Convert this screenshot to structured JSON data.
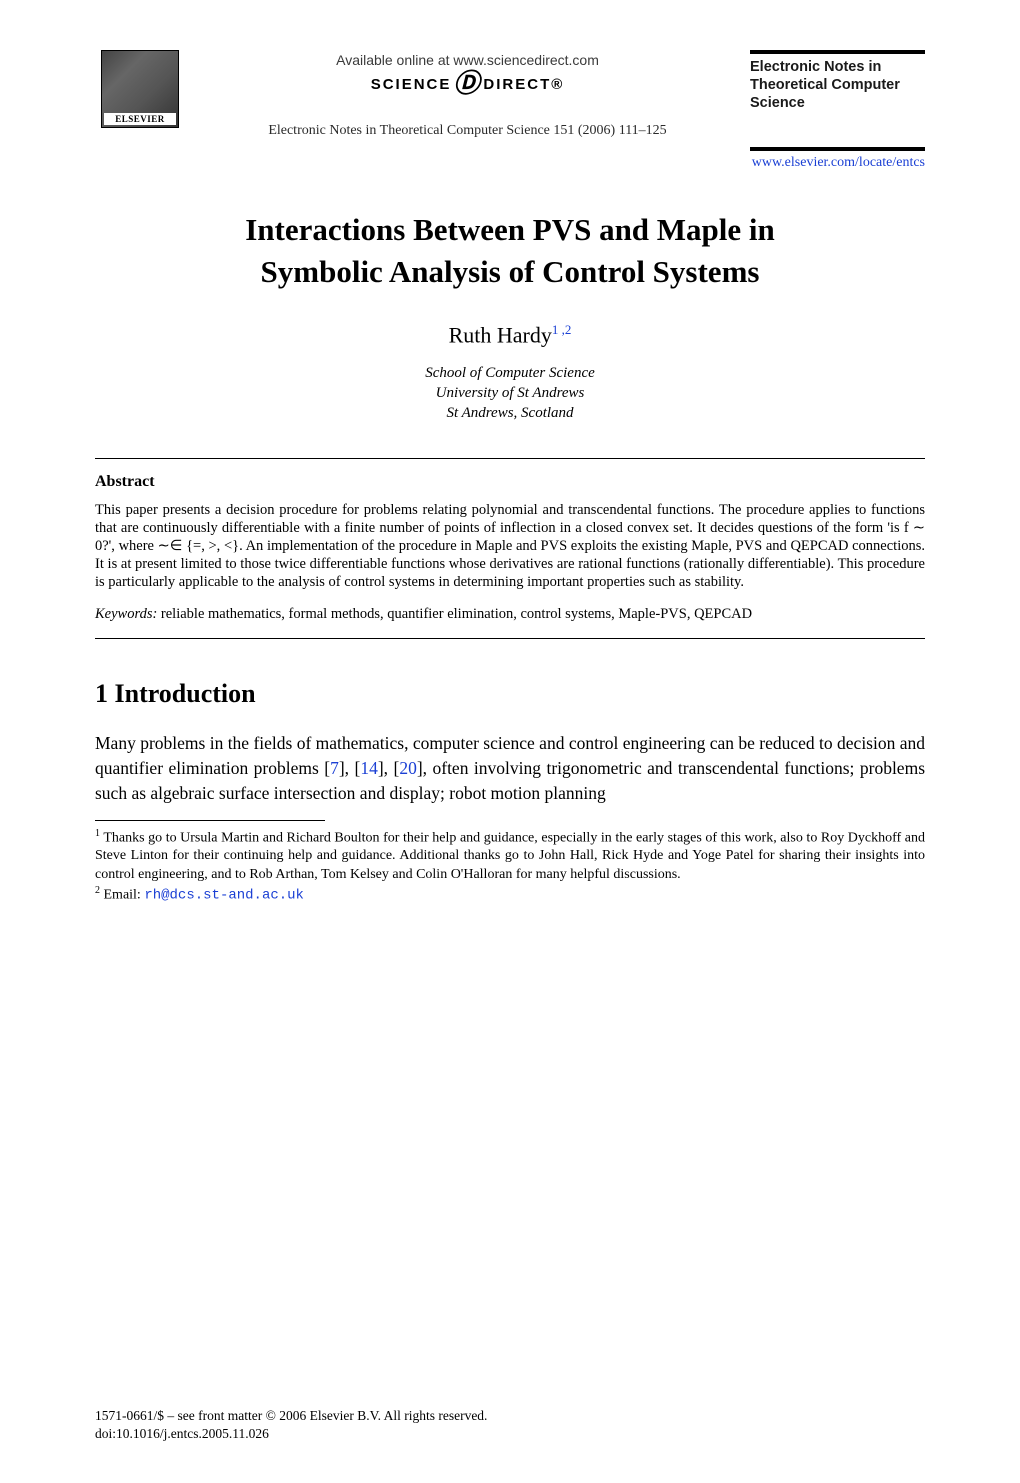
{
  "header": {
    "publisher_name": "ELSEVIER",
    "available_online": "Available online at www.sciencedirect.com",
    "science_direct_left": "SCIENCE",
    "science_direct_right": "DIRECT®",
    "journal_citation": "Electronic Notes in Theoretical Computer Science 151 (2006) 111–125",
    "entcs_title": "Electronic Notes in Theoretical Computer Science",
    "locate_url": "www.elsevier.com/locate/entcs"
  },
  "paper": {
    "title_line1": "Interactions Between PVS and Maple in",
    "title_line2": "Symbolic Analysis of Control Systems",
    "author_name": "Ruth Hardy",
    "author_sup": "1 ,2",
    "affiliation_line1": "School of Computer Science",
    "affiliation_line2": "University of St Andrews",
    "affiliation_line3": "St Andrews, Scotland"
  },
  "abstract": {
    "heading": "Abstract",
    "body": "This paper presents a decision procedure for problems relating polynomial and transcendental functions. The procedure applies to functions that are continuously differentiable with a finite number of points of inflection in a closed convex set. It decides questions of the form 'is f ∼ 0?', where ∼∈ {=, >, <}. An implementation of the procedure in Maple and PVS exploits the existing Maple, PVS and QEPCAD connections. It is at present limited to those twice differentiable functions whose derivatives are rational functions (rationally differentiable). This procedure is particularly applicable to the analysis of control systems in determining important properties such as stability.",
    "keywords_label": "Keywords:",
    "keywords_text": "  reliable mathematics, formal methods, quantifier elimination, control systems, Maple-PVS, QEPCAD"
  },
  "section1": {
    "heading": "1   Introduction",
    "para1_a": "Many problems in the fields of mathematics, computer science and control engineering can be reduced to decision and quantifier elimination problems [",
    "cite1": "7",
    "para1_b": "], [",
    "cite2": "14",
    "para1_c": "], [",
    "cite3": "20",
    "para1_d": "], often involving trigonometric and transcendental functions; problems such as algebraic surface intersection and display; robot motion planning"
  },
  "footnotes": {
    "fn1_sup": "1",
    "fn1_text": " Thanks go to Ursula Martin and Richard Boulton for their help and guidance, especially in the early stages of this work, also to Roy Dyckhoff and Steve Linton for their continuing help and guidance. Additional thanks go to John Hall, Rick Hyde and Yoge Patel for sharing their insights into control engineering, and to Rob Arthan, Tom Kelsey and Colin O'Halloran for many helpful discussions.",
    "fn2_sup": "2",
    "fn2_label": " Email: ",
    "fn2_email": "rh@dcs.st-and.ac.uk"
  },
  "footer": {
    "copyright": "1571-0661/$ – see front matter © 2006 Elsevier B.V. All rights reserved.",
    "doi": "doi:10.1016/j.entcs.2005.11.026"
  },
  "colors": {
    "link": "#1a3fd4",
    "text": "#000000",
    "background": "#ffffff"
  },
  "typography": {
    "title_fontsize": 31,
    "author_fontsize": 22,
    "section_heading_fontsize": 26,
    "body_fontsize": 17.5,
    "abstract_fontsize": 14.5,
    "footnote_fontsize": 14
  }
}
